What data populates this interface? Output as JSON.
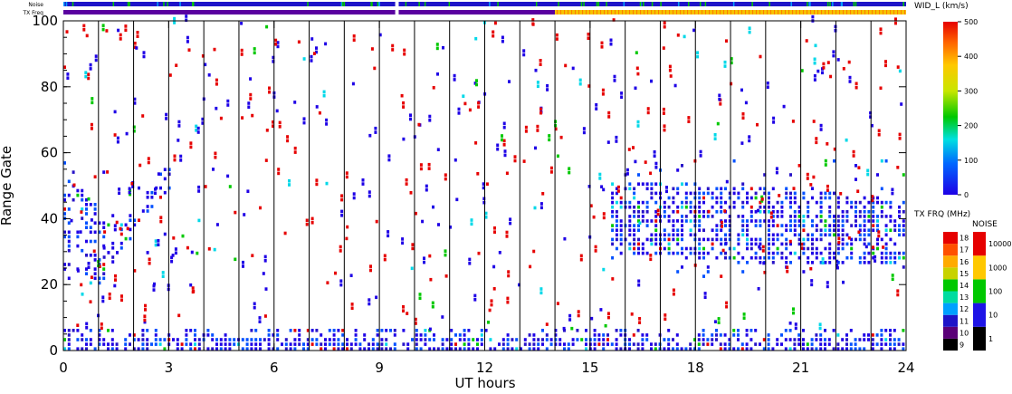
{
  "chart_data": {
    "type": "heatmap",
    "xlabel": "UT hours",
    "ylabel": "Range Gate",
    "xlim": [
      0,
      24
    ],
    "ylim": [
      0,
      100
    ],
    "x_ticks": [
      "0",
      "3",
      "6",
      "9",
      "12",
      "15",
      "18",
      "21",
      "24"
    ],
    "y_ticks": [
      "0",
      "20",
      "40",
      "60",
      "80",
      "100"
    ],
    "scan_boundaries_ut": [
      1,
      2,
      3,
      4,
      5,
      6,
      7,
      8,
      9,
      10,
      11,
      12,
      13,
      14,
      15,
      16,
      17,
      18,
      19,
      20,
      21,
      22,
      23
    ],
    "data_gap_ut": [
      9.45,
      9.55
    ],
    "noise_label": "Noise",
    "txfreq_label": "TX Freq",
    "txfreq_segments": [
      {
        "from": 0,
        "to": 14,
        "color": "#5a00a0"
      },
      {
        "from": 14,
        "to": 24,
        "color": "#f5c400"
      }
    ],
    "scatter_regions": [
      {
        "name": "ground scatter near range",
        "x": [
          0,
          24
        ],
        "y": [
          0,
          6
        ],
        "value": "low",
        "density": "dense"
      },
      {
        "name": "morning patch",
        "x": [
          0,
          1.2
        ],
        "y": [
          20,
          60
        ],
        "value": "low",
        "density": "medium"
      },
      {
        "name": "morning arc",
        "x": [
          1,
          3
        ],
        "y": [
          25,
          55
        ],
        "value": "low",
        "density": "sparse"
      },
      {
        "name": "evening patch",
        "x": [
          15.6,
          23.9
        ],
        "y": [
          22,
          58
        ],
        "value": "low",
        "density": "dense"
      }
    ],
    "width_colorbar": {
      "label": "WID_L (km/s)",
      "ticks": [
        "0",
        "100",
        "200",
        "300",
        "400",
        "500"
      ],
      "range": [
        0,
        500
      ]
    },
    "txfreq_colorbar": {
      "label": "TX FRQ (MHz)",
      "ticks": [
        "9",
        "10",
        "11",
        "12",
        "13",
        "14",
        "15",
        "16",
        "17",
        "18"
      ],
      "colors": [
        "#000000",
        "#5a0078",
        "#1e14c8",
        "#00a0ff",
        "#00dca0",
        "#00c800",
        "#c8d200",
        "#ffaa00",
        "#ff5000",
        "#e60000"
      ]
    },
    "noise_colorbar": {
      "label": "NOISE",
      "ticks": [
        "1",
        "10",
        "100",
        "1000",
        "10000"
      ],
      "colors": [
        "#000000",
        "#1e14e6",
        "#00c800",
        "#ffc800",
        "#e60000"
      ]
    }
  }
}
